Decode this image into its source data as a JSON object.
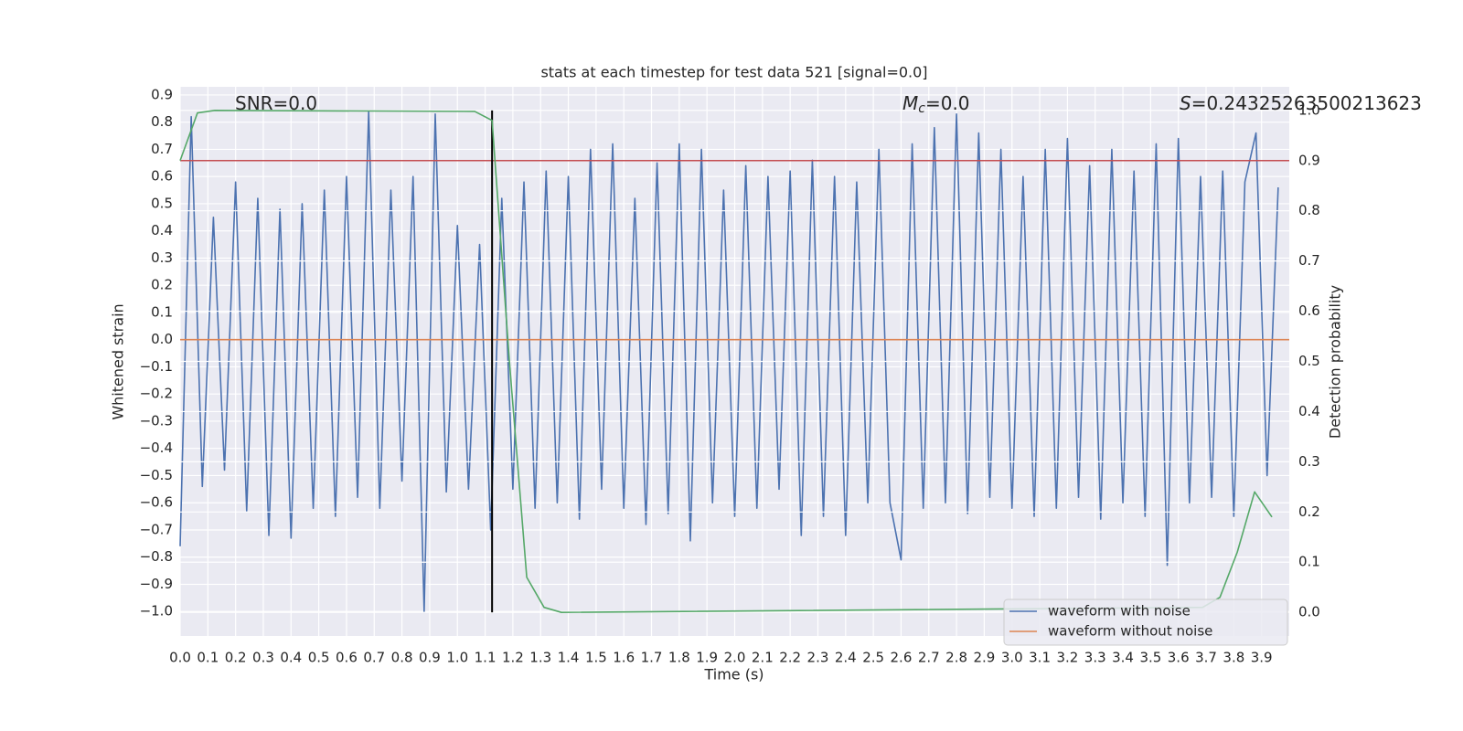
{
  "chart_data": {
    "type": "line",
    "title": "stats at each timestep for test data 521 [signal=0.0]",
    "xlabel": "Time (s)",
    "ylabel": "Whitened strain",
    "y2label": "Detection probability",
    "xlim": [
      0,
      4.0
    ],
    "ylim": [
      -1.09,
      0.93
    ],
    "y2lim": [
      -0.047,
      1.047
    ],
    "grid": true,
    "legend": "lower right",
    "background": "#eaeaf2",
    "xticks": [
      {
        "value": 0.0,
        "label": "0.0"
      },
      0.1,
      0.2,
      0.3,
      0.4,
      0.5,
      0.6,
      0.7,
      0.8,
      0.9,
      {
        "value": 1.0,
        "label": "1.0"
      },
      1.1,
      1.2,
      1.3,
      1.4,
      1.5,
      1.6,
      1.7,
      1.8,
      1.9,
      {
        "value": 2.0,
        "label": "2.0"
      },
      2.1,
      2.2,
      2.3,
      2.4,
      2.5,
      2.6,
      2.7,
      2.8,
      2.9,
      {
        "value": 3.0,
        "label": "3.0"
      },
      3.1,
      3.2,
      3.3,
      3.4,
      3.5,
      3.6,
      3.7,
      3.8,
      3.9
    ],
    "yticks": [
      0.9,
      0.8,
      0.7,
      0.6,
      0.5,
      0.4,
      0.3,
      0.2,
      0.1,
      {
        "value": 0.0,
        "label": "0.0"
      },
      {
        "value": -0.1,
        "label": "−0.1"
      },
      {
        "value": -0.2,
        "label": "−0.2"
      },
      {
        "value": -0.3,
        "label": "−0.3"
      },
      {
        "value": -0.4,
        "label": "−0.4"
      },
      {
        "value": -0.5,
        "label": "−0.5"
      },
      {
        "value": -0.6,
        "label": "−0.6"
      },
      {
        "value": -0.7,
        "label": "−0.7"
      },
      {
        "value": -0.8,
        "label": "−0.8"
      },
      {
        "value": -0.9,
        "label": "−0.9"
      },
      {
        "value": -1.0,
        "label": "−1.0"
      }
    ],
    "y2ticks": [
      {
        "value": 0.0,
        "label": "0.0"
      },
      0.1,
      0.2,
      0.3,
      0.4,
      0.5,
      0.6,
      0.7,
      0.8,
      0.9,
      {
        "value": 1.0,
        "label": "1.0"
      }
    ],
    "annotations": [
      {
        "text": "SNR=0.0"
      },
      {
        "symbol": "M",
        "sub": "c",
        "text": "=0.0"
      },
      {
        "symbol": "S",
        "text": "=0.24325263500213623"
      }
    ],
    "series": [
      {
        "name": "waveform with noise",
        "color": "#4c72b0",
        "x": [
          0.0,
          0.04,
          0.08,
          0.12,
          0.16,
          0.2,
          0.24,
          0.28,
          0.32,
          0.36,
          0.4,
          0.44,
          0.48,
          0.52,
          0.56,
          0.6,
          0.64,
          0.68,
          0.72,
          0.76,
          0.8,
          0.84,
          0.88,
          0.92,
          0.96,
          1.0,
          1.04,
          1.08,
          1.12,
          1.16,
          1.2,
          1.24,
          1.28,
          1.32,
          1.36,
          1.4,
          1.44,
          1.48,
          1.52,
          1.56,
          1.6,
          1.64,
          1.68,
          1.72,
          1.76,
          1.8,
          1.84,
          1.88,
          1.92,
          1.96,
          2.0,
          2.04,
          2.08,
          2.12,
          2.16,
          2.2,
          2.24,
          2.28,
          2.32,
          2.36,
          2.4,
          2.44,
          2.48,
          2.52,
          2.56,
          2.6,
          2.64,
          2.68,
          2.72,
          2.76,
          2.8,
          2.84,
          2.88,
          2.92,
          2.96,
          3.0,
          3.04,
          3.08,
          3.12,
          3.16,
          3.2,
          3.24,
          3.28,
          3.32,
          3.36,
          3.4,
          3.44,
          3.48,
          3.52,
          3.56,
          3.6,
          3.64,
          3.68,
          3.72,
          3.76,
          3.8,
          3.84,
          3.88,
          3.92,
          3.96
        ],
        "values": [
          -0.76,
          0.82,
          -0.54,
          0.45,
          -0.48,
          0.58,
          -0.63,
          0.52,
          -0.72,
          0.48,
          -0.73,
          0.5,
          -0.62,
          0.55,
          -0.65,
          0.6,
          -0.58,
          0.84,
          -0.62,
          0.55,
          -0.52,
          0.6,
          -1.0,
          0.83,
          -0.56,
          0.42,
          -0.55,
          0.35,
          -0.7,
          0.52,
          -0.55,
          0.58,
          -0.62,
          0.62,
          -0.6,
          0.6,
          -0.66,
          0.7,
          -0.55,
          0.72,
          -0.62,
          0.52,
          -0.68,
          0.65,
          -0.64,
          0.72,
          -0.74,
          0.7,
          -0.6,
          0.55,
          -0.65,
          0.64,
          -0.62,
          0.6,
          -0.55,
          0.62,
          -0.72,
          0.66,
          -0.65,
          0.6,
          -0.72,
          0.58,
          -0.6,
          0.7,
          -0.6,
          -0.81,
          0.72,
          -0.62,
          0.78,
          -0.6,
          0.83,
          -0.64,
          0.76,
          -0.58,
          0.7,
          -0.62,
          0.6,
          -0.65,
          0.7,
          -0.62,
          0.74,
          -0.58,
          0.64,
          -0.66,
          0.7,
          -0.6,
          0.62,
          -0.65,
          0.72,
          -0.83,
          0.74,
          -0.6,
          0.6,
          -0.58,
          0.62,
          -0.65,
          0.58,
          0.76,
          -0.5,
          0.56
        ]
      },
      {
        "name": "waveform without noise",
        "color": "#dd8452",
        "x": [
          0,
          4.0
        ],
        "values": [
          0,
          0
        ]
      }
    ],
    "detection": {
      "color": "#55a868",
      "axis": "y2",
      "x": [
        0,
        0.0625,
        0.125,
        1.0625,
        1.125,
        1.1875,
        1.25,
        1.3125,
        1.375,
        3.6875,
        3.75,
        3.8125,
        3.875,
        3.9375
      ],
      "values": [
        0.9,
        0.995,
        1.0,
        0.998,
        0.98,
        0.5,
        0.07,
        0.01,
        0.0,
        0.01,
        0.03,
        0.12,
        0.24,
        0.19
      ]
    },
    "threshold": {
      "value": 0.9,
      "color": "#c44e52",
      "axis": "y2"
    },
    "marker": {
      "x": 1.125,
      "color": "#000000",
      "y2": [
        0,
        1
      ]
    }
  }
}
